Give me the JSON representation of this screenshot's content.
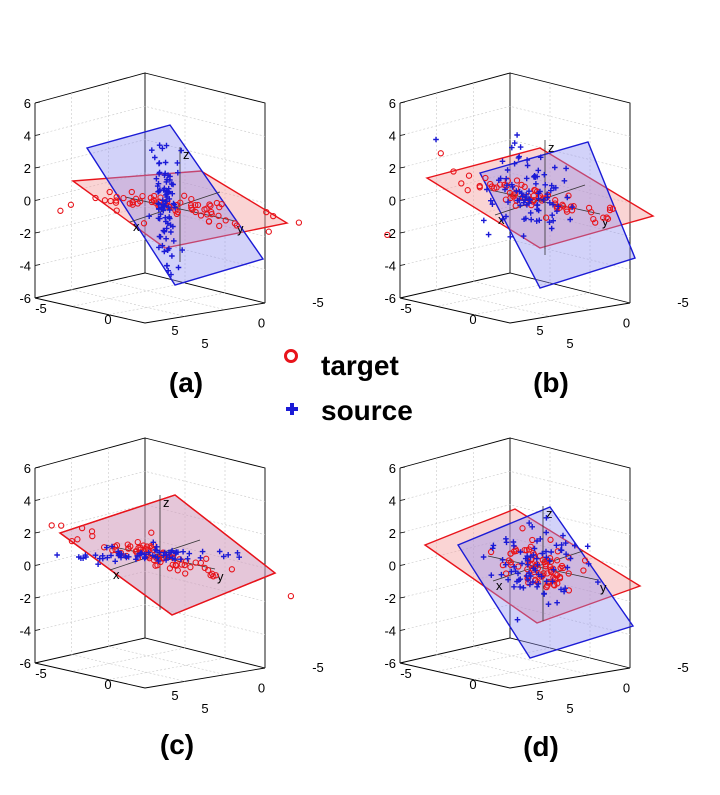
{
  "legend": {
    "entries": [
      {
        "label": "target",
        "marker": "circle",
        "color": "#e8141b"
      },
      {
        "label": "source",
        "marker": "plus",
        "color": "#1b1bd6"
      }
    ]
  },
  "colors": {
    "target_plane_fill": "#f5a0a0",
    "target_plane_edge": "#e8141b",
    "source_plane_fill": "#8f8ff0",
    "source_plane_edge": "#1b1bd6",
    "target_marker": "#e8141b",
    "source_marker": "#1b1bd6"
  },
  "chart_data": [
    {
      "type": "scatter",
      "panel_label": "(a)",
      "zlim": [
        -6,
        6
      ],
      "ztick_labels": [
        "6",
        "4",
        "2",
        "0",
        "-2",
        "-4",
        "-6"
      ],
      "xtick_labels": [
        "-5",
        "0",
        "5"
      ],
      "ytick_labels": [
        "5",
        "0",
        "-5"
      ],
      "inner_axis_labels": {
        "x": "x",
        "y": "y",
        "z": "z"
      },
      "planes": [
        {
          "name": "target",
          "shown": true
        },
        {
          "name": "source",
          "shown": true
        }
      ],
      "series": [
        {
          "name": "target",
          "marker": "circle",
          "distribution": "elongated along target plane"
        },
        {
          "name": "source",
          "marker": "plus",
          "distribution": "vertical spread along z"
        }
      ]
    },
    {
      "type": "scatter",
      "panel_label": "(b)",
      "zlim": [
        -6,
        6
      ],
      "ztick_labels": [
        "6",
        "4",
        "2",
        "0",
        "-2",
        "-4",
        "-6"
      ],
      "xtick_labels": [
        "-5",
        "0",
        "5"
      ],
      "ytick_labels": [
        "5",
        "0",
        "-5"
      ],
      "inner_axis_labels": {
        "x": "x",
        "y": "y",
        "z": "z"
      },
      "planes": [
        {
          "name": "target",
          "shown": true
        },
        {
          "name": "source",
          "shown": true
        }
      ],
      "series": [
        {
          "name": "target",
          "marker": "circle",
          "distribution": "elongated along target plane"
        },
        {
          "name": "source",
          "marker": "plus",
          "distribution": "broad cloud, partially aligned"
        }
      ]
    },
    {
      "type": "scatter",
      "panel_label": "(c)",
      "zlim": [
        -6,
        6
      ],
      "ztick_labels": [
        "6",
        "4",
        "2",
        "0",
        "-2",
        "-4",
        "-6"
      ],
      "xtick_labels": [
        "-5",
        "0",
        "5"
      ],
      "ytick_labels": [
        "5",
        "0",
        "-5"
      ],
      "inner_axis_labels": {
        "x": "x",
        "y": "y",
        "z": "z"
      },
      "planes": [
        {
          "name": "target",
          "shown": true
        },
        {
          "name": "source",
          "shown": true,
          "coincident_with": "target"
        }
      ],
      "series": [
        {
          "name": "target",
          "marker": "circle",
          "distribution": "along common plane"
        },
        {
          "name": "source",
          "marker": "plus",
          "distribution": "along common plane"
        }
      ]
    },
    {
      "type": "scatter",
      "panel_label": "(d)",
      "zlim": [
        -6,
        6
      ],
      "ztick_labels": [
        "6",
        "4",
        "2",
        "0",
        "-2",
        "-4",
        "-6"
      ],
      "xtick_labels": [
        "-5",
        "0",
        "5"
      ],
      "ytick_labels": [
        "5",
        "0",
        "-5"
      ],
      "inner_axis_labels": {
        "x": "x",
        "y": "y",
        "z": "z"
      },
      "planes": [
        {
          "name": "target",
          "shown": true
        },
        {
          "name": "source",
          "shown": true
        }
      ],
      "series": [
        {
          "name": "target",
          "marker": "circle",
          "distribution": "compact cluster near origin"
        },
        {
          "name": "source",
          "marker": "plus",
          "distribution": "compact cluster near origin"
        }
      ]
    }
  ]
}
